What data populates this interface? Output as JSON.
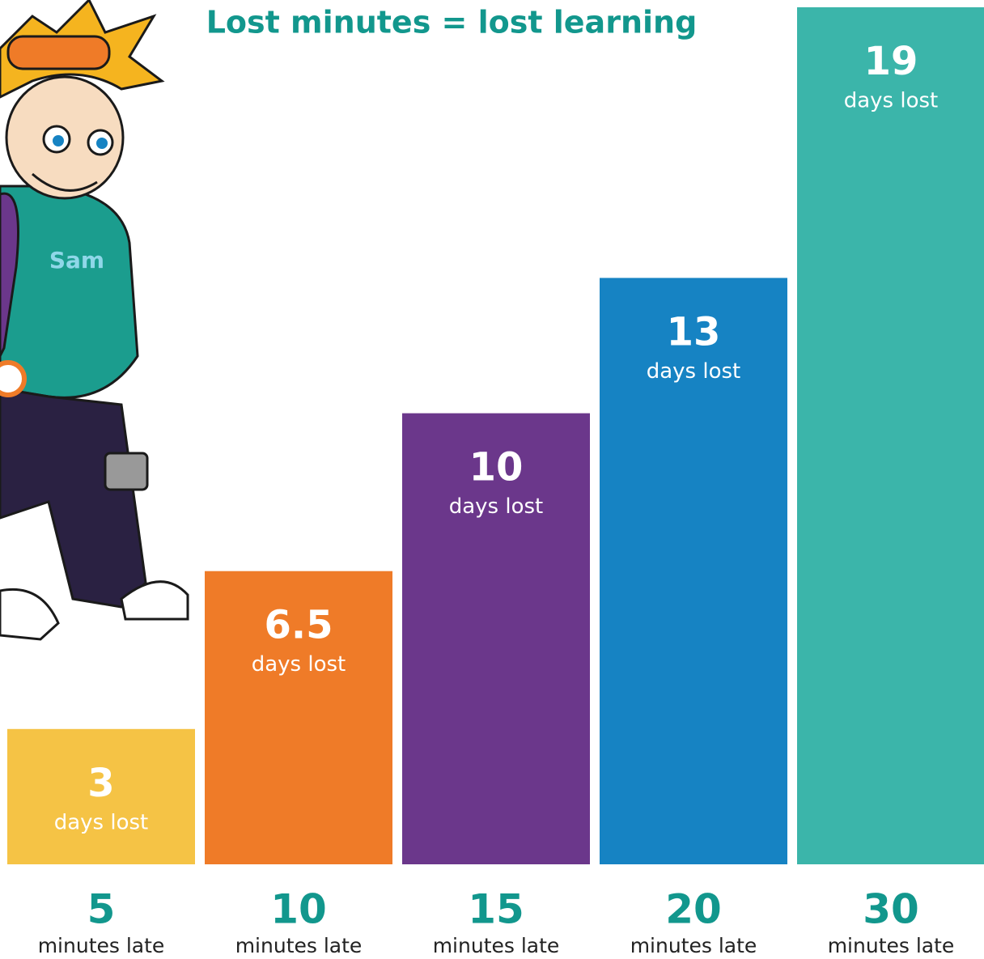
{
  "chart_data": {
    "type": "bar",
    "title": "Lost minutes = lost learning",
    "categories": [
      "5",
      "10",
      "15",
      "20",
      "30"
    ],
    "category_unit": "minutes late",
    "values": [
      3,
      6.5,
      10,
      13,
      19
    ],
    "value_unit": "days lost",
    "colors": [
      "#f5c345",
      "#ef7b28",
      "#6b378b",
      "#1683c3",
      "#3bb5aa"
    ]
  },
  "illustration": {
    "shirt_label": "Sam"
  }
}
